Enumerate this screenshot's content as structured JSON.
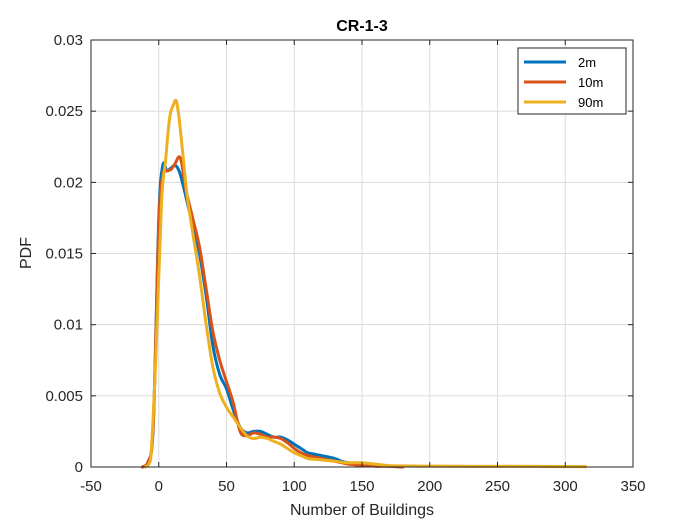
{
  "chart_data": {
    "type": "line",
    "title": "CR-1-3",
    "xlabel": "Number of Buildings",
    "ylabel": "PDF",
    "xlim": [
      -50,
      350
    ],
    "ylim": [
      0,
      0.03
    ],
    "xticks": [
      -50,
      0,
      50,
      100,
      150,
      200,
      250,
      300,
      350
    ],
    "xtick_labels": [
      "-50",
      "0",
      "50",
      "100",
      "150",
      "200",
      "250",
      "300",
      "350"
    ],
    "yticks": [
      0,
      0.005,
      0.01,
      0.015,
      0.02,
      0.025,
      0.03
    ],
    "ytick_labels": [
      "0",
      "0.005",
      "0.01",
      "0.015",
      "0.02",
      "0.025",
      "0.03"
    ],
    "grid": true,
    "legend_position": "top-right",
    "series": [
      {
        "name": "2m",
        "color": "#0072BD",
        "x": [
          -12,
          -8,
          -4,
          0,
          3,
          6,
          9,
          12,
          15,
          18,
          21,
          25,
          30,
          35,
          40,
          45,
          50,
          55,
          60,
          65,
          70,
          75,
          80,
          85,
          90,
          95,
          100,
          105,
          110,
          115,
          120,
          125,
          130,
          135,
          140,
          150,
          160,
          170,
          180
        ],
        "y": [
          0,
          0.0003,
          0.003,
          0.0175,
          0.0212,
          0.0208,
          0.021,
          0.0212,
          0.0208,
          0.0198,
          0.0186,
          0.017,
          0.015,
          0.012,
          0.0085,
          0.0065,
          0.0055,
          0.004,
          0.0028,
          0.0024,
          0.0025,
          0.0025,
          0.0023,
          0.0021,
          0.0021,
          0.0019,
          0.0016,
          0.0013,
          0.001,
          0.0009,
          0.0008,
          0.0007,
          0.0006,
          0.0004,
          0.0003,
          0.0002,
          0.0001,
          5e-05,
          0
        ]
      },
      {
        "name": "10m",
        "color": "#D95319",
        "x": [
          -12,
          -8,
          -4,
          0,
          3,
          6,
          9,
          12,
          15,
          17,
          20,
          25,
          30,
          35,
          40,
          45,
          50,
          55,
          60,
          65,
          70,
          75,
          80,
          85,
          90,
          95,
          100,
          105,
          110,
          115,
          120,
          125,
          130,
          135,
          140,
          145,
          150,
          155,
          160,
          165,
          170,
          180
        ],
        "y": [
          0,
          0.0003,
          0.003,
          0.017,
          0.0205,
          0.0208,
          0.0209,
          0.0213,
          0.0218,
          0.0213,
          0.0195,
          0.0175,
          0.0155,
          0.0125,
          0.0095,
          0.0075,
          0.006,
          0.0045,
          0.0025,
          0.0022,
          0.0024,
          0.0023,
          0.0021,
          0.0021,
          0.002,
          0.0017,
          0.0013,
          0.001,
          0.0008,
          0.0007,
          0.0006,
          0.0005,
          0.0004,
          0.0003,
          0.0002,
          0.00015,
          0.0001,
          0.0001,
          5e-05,
          5e-05,
          5e-05,
          0
        ]
      },
      {
        "name": "90m",
        "color": "#EDB120",
        "x": [
          -10,
          -6,
          -2,
          2,
          5,
          8,
          11,
          13,
          15,
          18,
          21,
          25,
          30,
          35,
          40,
          45,
          50,
          55,
          60,
          65,
          70,
          75,
          80,
          85,
          90,
          95,
          100,
          105,
          110,
          120,
          130,
          140,
          150,
          160,
          170,
          180,
          200,
          220,
          240,
          260,
          280,
          300,
          315
        ],
        "y": [
          0,
          0.0005,
          0.008,
          0.0185,
          0.0215,
          0.0245,
          0.0255,
          0.0257,
          0.0245,
          0.0218,
          0.019,
          0.0165,
          0.0135,
          0.01,
          0.007,
          0.0052,
          0.0042,
          0.0035,
          0.0028,
          0.0022,
          0.002,
          0.0021,
          0.002,
          0.0018,
          0.0016,
          0.0013,
          0.001,
          0.0008,
          0.0006,
          0.0005,
          0.0004,
          0.0003,
          0.0003,
          0.0002,
          0.0001,
          8e-05,
          6e-05,
          5e-05,
          4e-05,
          5e-05,
          4e-05,
          3e-05,
          3e-05
        ]
      }
    ]
  }
}
